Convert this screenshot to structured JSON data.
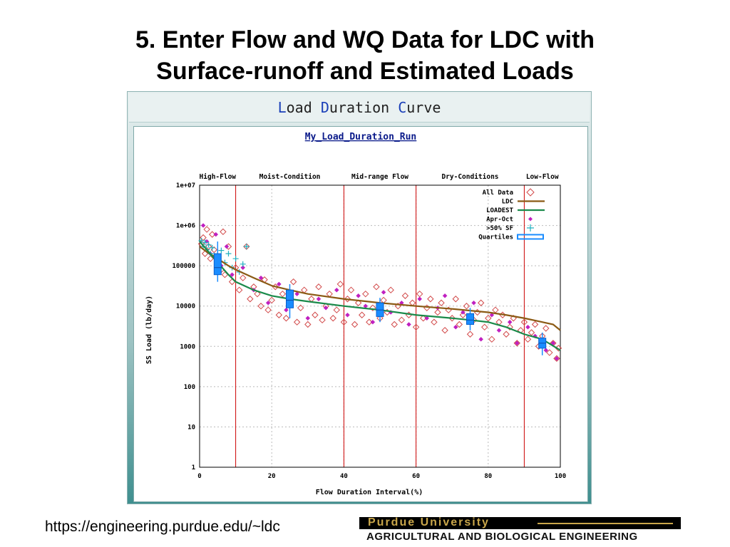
{
  "slide": {
    "title_line1": "5. Enter Flow and WQ Data for LDC with",
    "title_line2": "Surface-runoff and Estimated Loads",
    "footer_url": "https://engineering.purdue.edu/~ldc",
    "logo_top": "Purdue University",
    "logo_bottom": "AGRICULTURAL AND BIOLOGICAL ENGINEERING"
  },
  "app": {
    "header_title": "Load Duration Curve"
  },
  "colors": {
    "all_data": "#d24a4a",
    "ldc": "#8b5a14",
    "loadest": "#1a8a4a",
    "apr_oct": "#c020c0",
    "sf": "#20b0c0",
    "quartiles": "#1a8cff",
    "zone_line": "#cc0000"
  },
  "chart_data": {
    "type": "scatter",
    "title": "My_Load_Duration_Run",
    "xlabel": "Flow Duration Interval(%)",
    "ylabel": "SS Load (lb/day)",
    "xlim": [
      0,
      100
    ],
    "ylim": [
      1,
      10000000
    ],
    "yscale": "log",
    "grid": true,
    "legend_position": "top-right",
    "x_ticks": [
      "0",
      "20",
      "40",
      "60",
      "80",
      "100"
    ],
    "y_ticks": [
      "1",
      "10",
      "100",
      "1000",
      "10000",
      "100000",
      "1e+06",
      "1e+07"
    ],
    "zone_labels": [
      "High-Flow",
      "Moist-Condition",
      "Mid-range Flow",
      "Dry-Conditions",
      "Low-Flow"
    ],
    "zone_label_x": [
      5,
      25,
      50,
      75,
      95
    ],
    "zone_boundaries": [
      10,
      40,
      60,
      90
    ],
    "legend": [
      "All Data",
      "LDC",
      "LOADEST",
      "Apr-Oct",
      ">50% SF",
      "Quartiles"
    ],
    "ldc": {
      "name": "LDC",
      "x": [
        0,
        2,
        5,
        8,
        10,
        15,
        20,
        25,
        30,
        40,
        50,
        60,
        70,
        80,
        85,
        90,
        95,
        98,
        100
      ],
      "y": [
        300000,
        220000,
        150000,
        100000,
        80000,
        50000,
        32000,
        25000,
        20000,
        15000,
        12000,
        10000,
        8500,
        7000,
        6000,
        5000,
        4000,
        3500,
        2500
      ]
    },
    "loadest": {
      "name": "LOADEST",
      "x": [
        0,
        2,
        5,
        8,
        10,
        15,
        20,
        25,
        30,
        40,
        50,
        60,
        70,
        75,
        80,
        85,
        90,
        95,
        100
      ],
      "y": [
        400000,
        250000,
        120000,
        60000,
        40000,
        25000,
        18000,
        15000,
        13000,
        10000,
        8000,
        6000,
        5000,
        4500,
        4000,
        3000,
        2000,
        1500,
        800
      ]
    },
    "quartiles": [
      {
        "x": 5,
        "min": 40000,
        "q1": 60000,
        "median": 90000,
        "q3": 200000,
        "max": 400000
      },
      {
        "x": 25,
        "min": 5000,
        "q1": 9000,
        "median": 14000,
        "q3": 25000,
        "max": 35000
      },
      {
        "x": 50,
        "min": 4000,
        "q1": 5500,
        "median": 8000,
        "q3": 12000,
        "max": 16000
      },
      {
        "x": 75,
        "min": 2500,
        "q1": 3500,
        "median": 4500,
        "q3": 6500,
        "max": 9000
      },
      {
        "x": 95,
        "min": 600,
        "q1": 900,
        "median": 1200,
        "q3": 1600,
        "max": 2200
      }
    ],
    "sf_points": {
      "x": [
        0.5,
        1,
        1.5,
        2,
        2.5,
        3,
        3.5,
        4,
        5,
        6,
        7,
        8,
        9,
        10,
        11,
        12,
        13
      ],
      "y": [
        420000,
        300000,
        380000,
        250000,
        330000,
        200000,
        280000,
        180000,
        150000,
        240000,
        120000,
        200000,
        90000,
        150000,
        70000,
        110000,
        300000
      ]
    },
    "all_data": {
      "x": [
        0.5,
        1,
        1.5,
        2,
        2.5,
        3,
        3.5,
        4,
        5,
        6,
        6.5,
        7,
        8,
        9,
        10,
        11,
        12,
        13,
        14,
        15,
        16,
        17,
        18,
        19,
        20,
        21,
        22,
        23,
        24,
        25,
        26,
        27,
        28,
        29,
        30,
        31,
        32,
        33,
        34,
        35,
        36,
        37,
        38,
        39,
        40,
        41,
        42,
        43,
        44,
        45,
        46,
        47,
        48,
        49,
        50,
        51,
        52,
        53,
        54,
        55,
        56,
        57,
        58,
        59,
        60,
        61,
        62,
        63,
        64,
        65,
        66,
        67,
        68,
        69,
        70,
        71,
        72,
        73,
        74,
        75,
        76,
        77,
        78,
        79,
        80,
        81,
        82,
        83,
        84,
        85,
        86,
        87,
        88,
        89,
        90,
        91,
        92,
        93,
        94,
        95,
        96,
        97,
        98,
        99,
        99.5
      ],
      "y": [
        350000,
        500000,
        200000,
        800000,
        300000,
        150000,
        600000,
        250000,
        120000,
        80000,
        700000,
        60000,
        300000,
        40000,
        90000,
        25000,
        50000,
        300000,
        15000,
        30000,
        20000,
        10000,
        45000,
        8000,
        14000,
        30000,
        6000,
        20000,
        5000,
        12000,
        40000,
        4000,
        9000,
        25000,
        3500,
        15000,
        6000,
        30000,
        4500,
        10000,
        20000,
        5000,
        8000,
        35000,
        4000,
        15000,
        25000,
        3500,
        12000,
        6000,
        20000,
        4000,
        9000,
        30000,
        5000,
        14000,
        7000,
        25000,
        3500,
        10000,
        4500,
        18000,
        6000,
        12000,
        3000,
        20000,
        5000,
        9000,
        15000,
        4000,
        7000,
        12000,
        2500,
        8000,
        5000,
        15000,
        3500,
        6000,
        10000,
        2000,
        4500,
        7000,
        12000,
        3000,
        5000,
        1500,
        8000,
        4000,
        6000,
        2000,
        3000,
        5000,
        1200,
        2500,
        4000,
        1500,
        2200,
        3500,
        1000,
        1800,
        2800,
        700,
        1200,
        500,
        900
      ]
    },
    "apr_oct": {
      "x": [
        1,
        2,
        3,
        4.5,
        6,
        7.5,
        9,
        12,
        15,
        17,
        19,
        22,
        24,
        27,
        30,
        33,
        35,
        38,
        41,
        44,
        46,
        48,
        51,
        53,
        56,
        58,
        61,
        63,
        66,
        68,
        71,
        73,
        76,
        78,
        81,
        83,
        86,
        88,
        91,
        93,
        96,
        98,
        99
      ],
      "y": [
        1000000,
        400000,
        200000,
        600000,
        100000,
        300000,
        60000,
        90000,
        25000,
        50000,
        12000,
        35000,
        8000,
        20000,
        5000,
        15000,
        9000,
        25000,
        6000,
        18000,
        10000,
        4000,
        22000,
        7000,
        12000,
        3500,
        15000,
        5000,
        9000,
        18000,
        3000,
        7000,
        12000,
        1500,
        6000,
        2500,
        4000,
        1200,
        3000,
        1800,
        800,
        1200,
        500
      ]
    }
  }
}
